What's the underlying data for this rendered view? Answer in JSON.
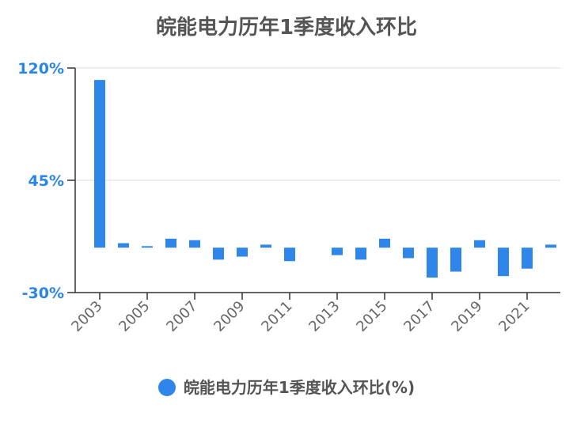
{
  "colors": {
    "bar": "#2f86ea",
    "grid": "#dddddd",
    "axis": "#333333",
    "tick_y": "#2a86e6"
  },
  "chart_data": {
    "type": "bar",
    "title": "皖能电力历年1季度收入环比",
    "categories": [
      "2003",
      "2004",
      "2005",
      "2006",
      "2007",
      "2008",
      "2009",
      "2010",
      "2011",
      "2012",
      "2013",
      "2014",
      "2015",
      "2016",
      "2017",
      "2018",
      "2019",
      "2020",
      "2021",
      "2022"
    ],
    "x_tick_labels": [
      "2003",
      "2005",
      "2007",
      "2009",
      "2011",
      "2013",
      "2015",
      "2017",
      "2019",
      "2021"
    ],
    "series": [
      {
        "name": "皖能电力历年1季度收入环比(%)",
        "values": [
          112,
          3,
          1,
          6,
          5,
          -8,
          -6,
          2,
          -9,
          0,
          -5,
          -8,
          6,
          -7,
          -20,
          -16,
          5,
          -19,
          -14,
          2
        ]
      }
    ],
    "y_ticks": [
      "120%",
      "45%",
      "-30%"
    ],
    "ylim": [
      -30,
      120
    ],
    "grid": true,
    "legend_position": "bottom"
  }
}
